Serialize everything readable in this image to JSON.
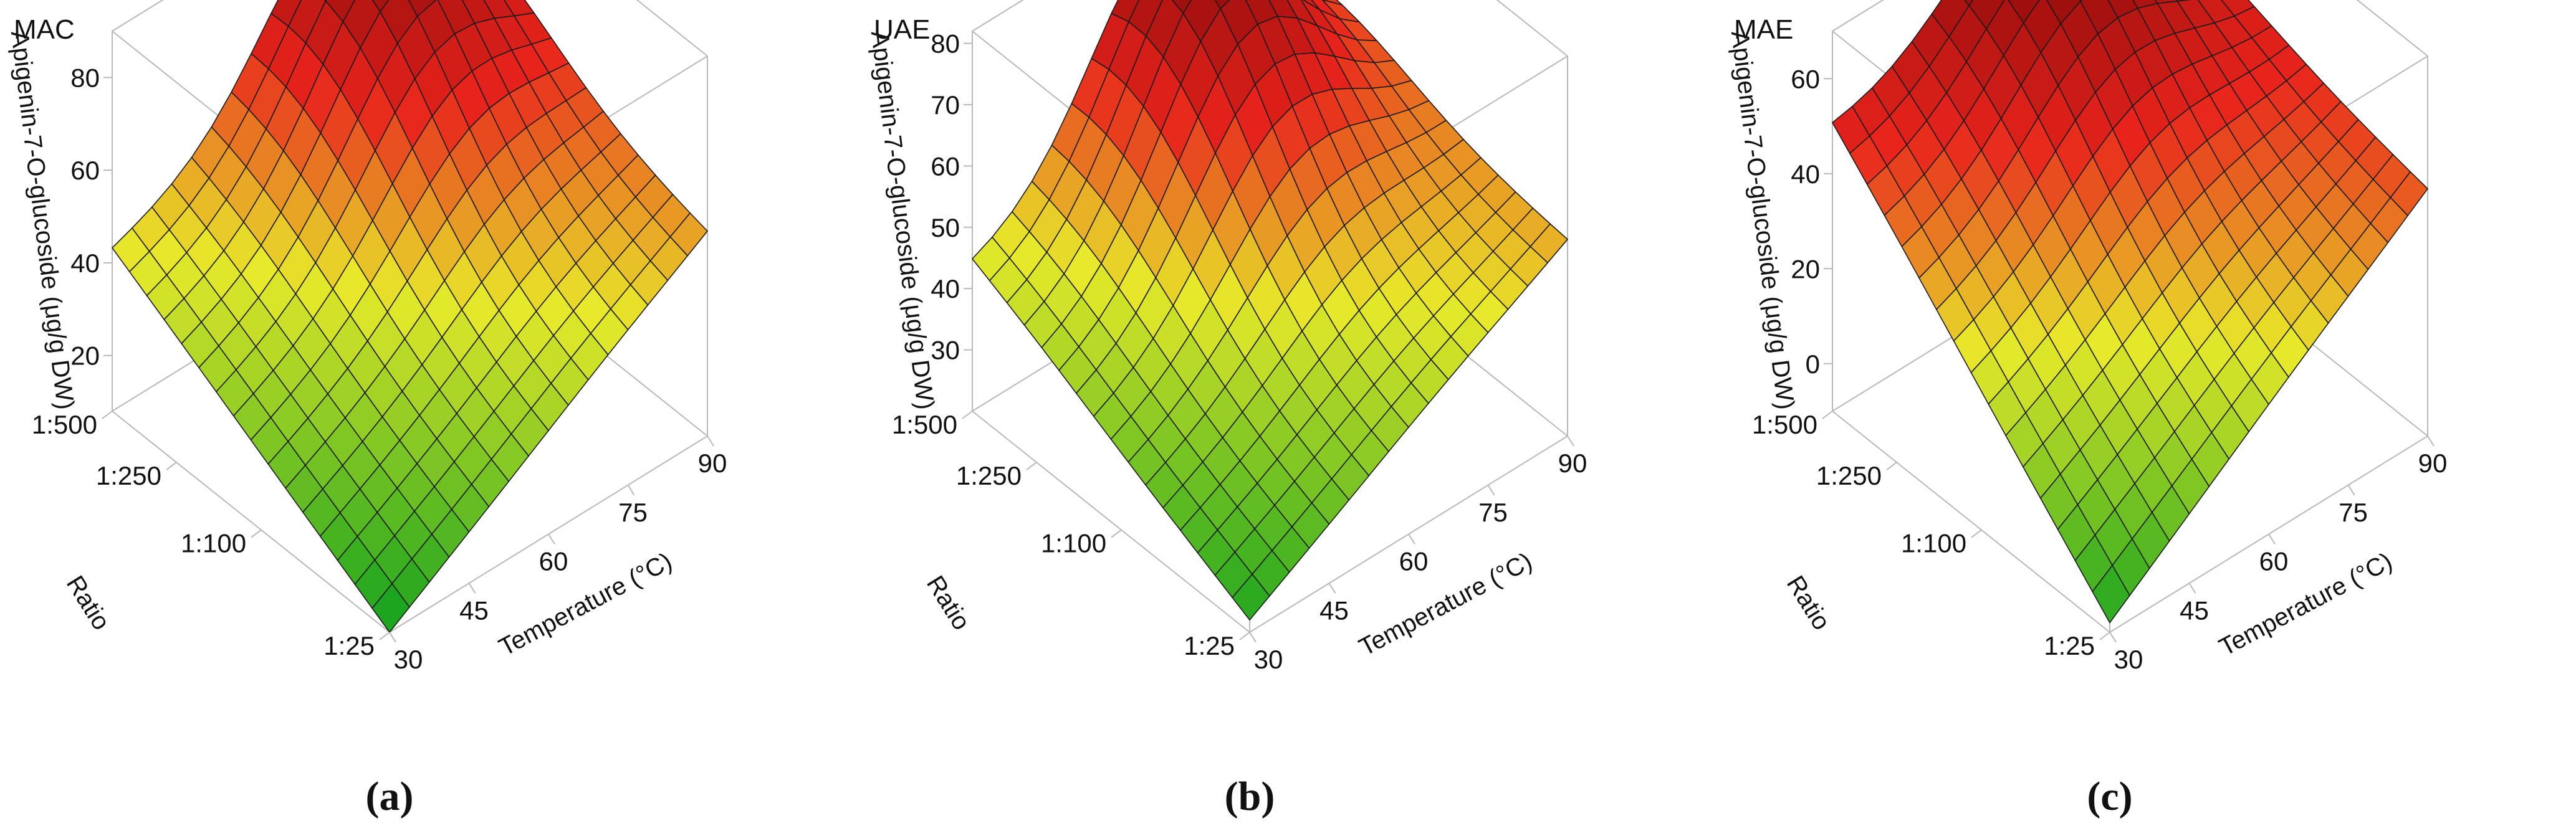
{
  "figure": {
    "caption_labels": [
      "(a)",
      "(b)",
      "(c)"
    ]
  },
  "colors": {
    "surface_low": "#0fa01e",
    "surface_mid": "#e8ea2a",
    "surface_high": "#e8231c",
    "surface_top": "#8a0a0a",
    "mesh": "#1a1a1a",
    "frame": "#b8b8b8",
    "text": "#111111"
  },
  "chart_data": [
    {
      "type": "surface3d",
      "panel_label": "(a)",
      "title": "MAC",
      "zlabel": "Apigenin-7-O-glucoside (μg/g DW)",
      "xlabel": "Temperature (°C)",
      "ylabel": "Ratio",
      "x_ticks": [
        "30",
        "45",
        "60",
        "75",
        "90"
      ],
      "x_range": [
        30,
        90
      ],
      "y_ticks": [
        "1:25",
        "1:100",
        "1:250",
        "1:500"
      ],
      "y_values": [
        25,
        100,
        250,
        500
      ],
      "z_ticks": [
        "20",
        "40",
        "60",
        "80"
      ],
      "z_tick_values": [
        20,
        40,
        60,
        80
      ],
      "z_range": [
        8,
        90
      ],
      "grid": {
        "x": [
          30,
          90,
          17
        ],
        "y": [
          25,
          500,
          17
        ]
      },
      "corners": {
        "t30_r500": 43,
        "t30_r25": 8,
        "t90_r500": 64,
        "t90_r25": 52
      },
      "peak": {
        "temperature": 72,
        "ratio": 320,
        "value": 87
      }
    },
    {
      "type": "surface3d",
      "panel_label": "(b)",
      "title": "UAE",
      "zlabel": "Apigenin-7-O-glucoside (μg/g DW)",
      "xlabel": "Temperature (°C)",
      "ylabel": "Ratio",
      "x_ticks": [
        "30",
        "45",
        "60",
        "75",
        "90"
      ],
      "x_range": [
        30,
        90
      ],
      "y_ticks": [
        "1:25",
        "1:100",
        "1:250",
        "1:500"
      ],
      "y_values": [
        25,
        100,
        250,
        500
      ],
      "z_ticks": [
        "30",
        "40",
        "50",
        "60",
        "70",
        "80"
      ],
      "z_tick_values": [
        30,
        40,
        50,
        60,
        70,
        80
      ],
      "z_range": [
        20,
        82
      ],
      "grid": {
        "x": [
          30,
          90,
          17
        ],
        "y": [
          25,
          500,
          17
        ]
      },
      "corners": {
        "t30_r500": 44,
        "t30_r25": 22,
        "t90_r500": 55,
        "t90_r25": 52
      },
      "peak": {
        "temperature": 66,
        "ratio": 330,
        "value": 81
      }
    },
    {
      "type": "surface3d",
      "panel_label": "(c)",
      "title": "MAE",
      "zlabel": "Apigenin-7-O-glucoside (μg/g DW)",
      "xlabel": "Temperature (°C)",
      "ylabel": "Ratio",
      "x_ticks": [
        "30",
        "45",
        "60",
        "75",
        "90"
      ],
      "x_range": [
        30,
        90
      ],
      "y_ticks": [
        "1:25",
        "1:100",
        "1:250",
        "1:500"
      ],
      "y_values": [
        25,
        100,
        250,
        500
      ],
      "z_ticks": [
        "0",
        "20",
        "40",
        "60"
      ],
      "z_tick_values": [
        0,
        20,
        40,
        60
      ],
      "z_range": [
        -10,
        70
      ],
      "grid": {
        "x": [
          30,
          90,
          17
        ],
        "y": [
          25,
          500,
          17
        ]
      },
      "corners": {
        "t30_r500": 50,
        "t30_r25": -8,
        "t90_r500": 52,
        "t90_r25": 42
      },
      "peak": {
        "temperature": 65,
        "ratio": 330,
        "value": 70
      }
    }
  ]
}
